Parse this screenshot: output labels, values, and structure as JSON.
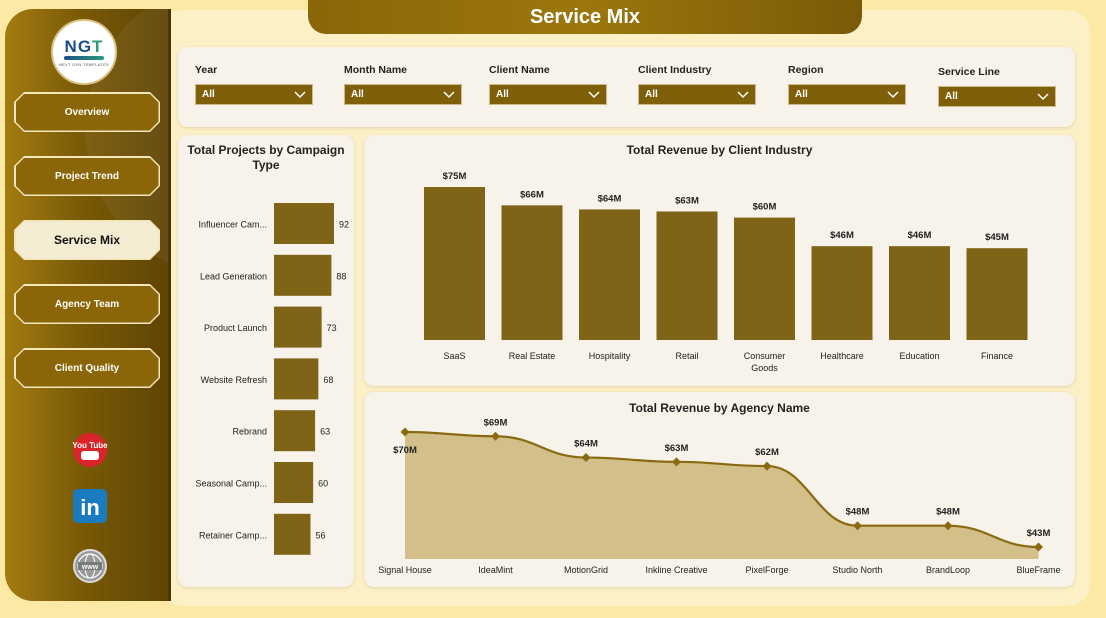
{
  "page_title": "Service Mix",
  "logo": {
    "mark_left": "NG",
    "mark_right": "T",
    "subtitle": "NEXT GEN TEMPLATES"
  },
  "nav": {
    "items": [
      {
        "label": "Overview",
        "active": false
      },
      {
        "label": "Project Trend",
        "active": false
      },
      {
        "label": "Service Mix",
        "active": true
      },
      {
        "label": "Agency Team",
        "active": false
      },
      {
        "label": "Client Quality",
        "active": false
      }
    ]
  },
  "social": {
    "youtube_text": "You Tube",
    "linkedin_text": "in",
    "web_text": "www"
  },
  "filters": [
    {
      "label": "Year",
      "value": "All"
    },
    {
      "label": "Month Name",
      "value": "All"
    },
    {
      "label": "Client Name",
      "value": "All"
    },
    {
      "label": "Client Industry",
      "value": "All"
    },
    {
      "label": "Region",
      "value": "All"
    },
    {
      "label": "Service Line",
      "value": "All"
    }
  ],
  "colors": {
    "bar": "#7f6317",
    "area": "#d3bf8a",
    "line": "#8a6a10",
    "accent": "#8a6608"
  },
  "chart_data": [
    {
      "id": "projects",
      "type": "bar",
      "orientation": "horizontal",
      "title": "Total Projects by Campaign Type",
      "categories": [
        "Influencer Cam...",
        "Lead Generation",
        "Product Launch",
        "Website Refresh",
        "Rebrand",
        "Seasonal Camp...",
        "Retainer Camp..."
      ],
      "values": [
        92,
        88,
        73,
        68,
        63,
        60,
        56
      ],
      "value_labels": [
        "92",
        "88",
        "73",
        "68",
        "63",
        "60",
        "56"
      ]
    },
    {
      "id": "industry",
      "type": "bar",
      "title": "Total Revenue by Client Industry",
      "categories": [
        "SaaS",
        "Real Estate",
        "Hospitality",
        "Retail",
        "Consumer Goods",
        "Healthcare",
        "Education",
        "Finance"
      ],
      "values": [
        75,
        66,
        64,
        63,
        60,
        46,
        46,
        45
      ],
      "value_labels": [
        "$75M",
        "$66M",
        "$64M",
        "$63M",
        "$60M",
        "$46M",
        "$46M",
        "$45M"
      ],
      "unit": "$M"
    },
    {
      "id": "agency",
      "type": "area",
      "title": "Total Revenue by Agency Name",
      "categories": [
        "Signal House",
        "IdeaMint",
        "MotionGrid",
        "Inkline Creative",
        "PixelForge",
        "Studio North",
        "BrandLoop",
        "BlueFrame"
      ],
      "values": [
        70,
        69,
        64,
        63,
        62,
        48,
        48,
        43
      ],
      "value_labels": [
        "$70M",
        "$69M",
        "$64M",
        "$63M",
        "$62M",
        "$48M",
        "$48M",
        "$43M"
      ],
      "unit": "$M"
    }
  ]
}
